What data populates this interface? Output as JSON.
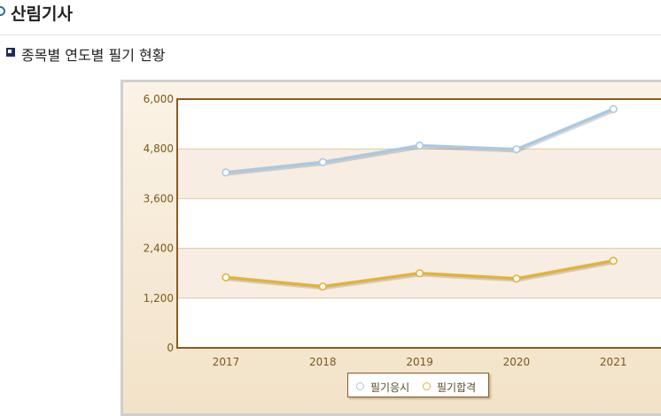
{
  "header": {
    "title": "산림기사"
  },
  "section": {
    "title": "종목별 연도별 필기 현황"
  },
  "colors": {
    "series_1": "#a9c9e2",
    "series_2": "#e2b23a",
    "axis": "#8a5a22",
    "tick_text": "#7a5a1a"
  },
  "chart_data": {
    "type": "line",
    "categories": [
      "2017",
      "2018",
      "2019",
      "2020",
      "2021"
    ],
    "series": [
      {
        "name": "필기응시",
        "values": [
          4230,
          4480,
          4880,
          4790,
          5760
        ]
      },
      {
        "name": "필기합격",
        "values": [
          1700,
          1480,
          1800,
          1670,
          2100
        ]
      }
    ],
    "y_ticks": [
      "0",
      "1,200",
      "2,400",
      "3,600",
      "4,800",
      "6,000"
    ],
    "ylim": [
      0,
      6000
    ],
    "grid": true,
    "legend": "bottom-center"
  }
}
